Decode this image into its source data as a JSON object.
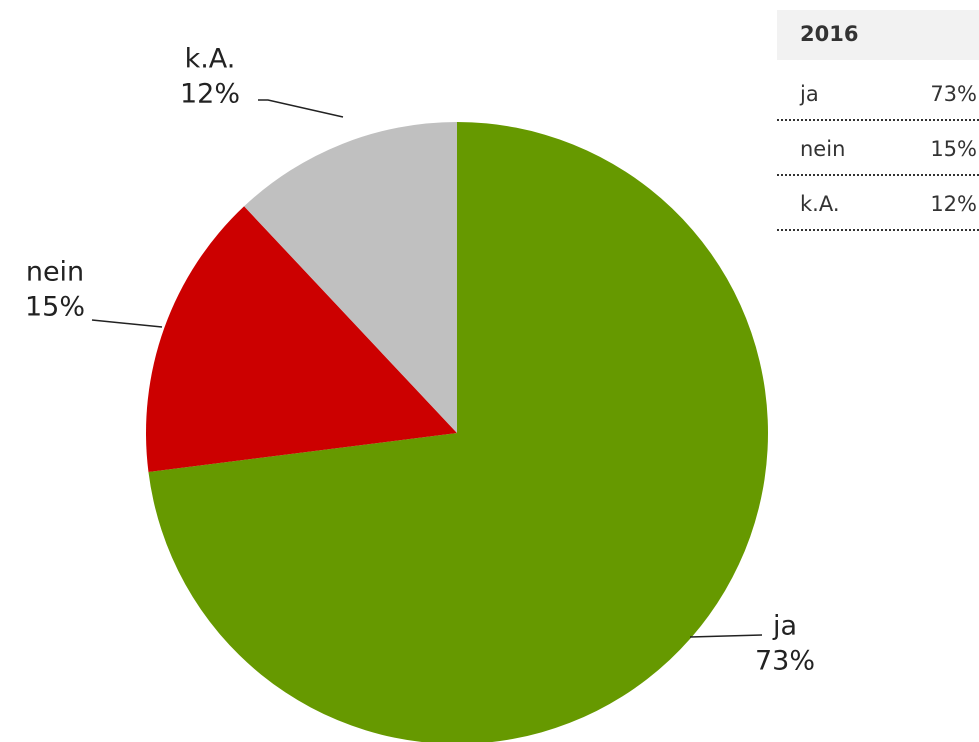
{
  "chart_data": {
    "type": "pie",
    "categories": [
      "ja",
      "nein",
      "k.A."
    ],
    "values": [
      73,
      15,
      12
    ],
    "value_labels": [
      "73%",
      "15%",
      "12%"
    ],
    "colors": [
      "#669900",
      "#cc0000",
      "#c0c0c0"
    ],
    "table_title": "2016"
  }
}
